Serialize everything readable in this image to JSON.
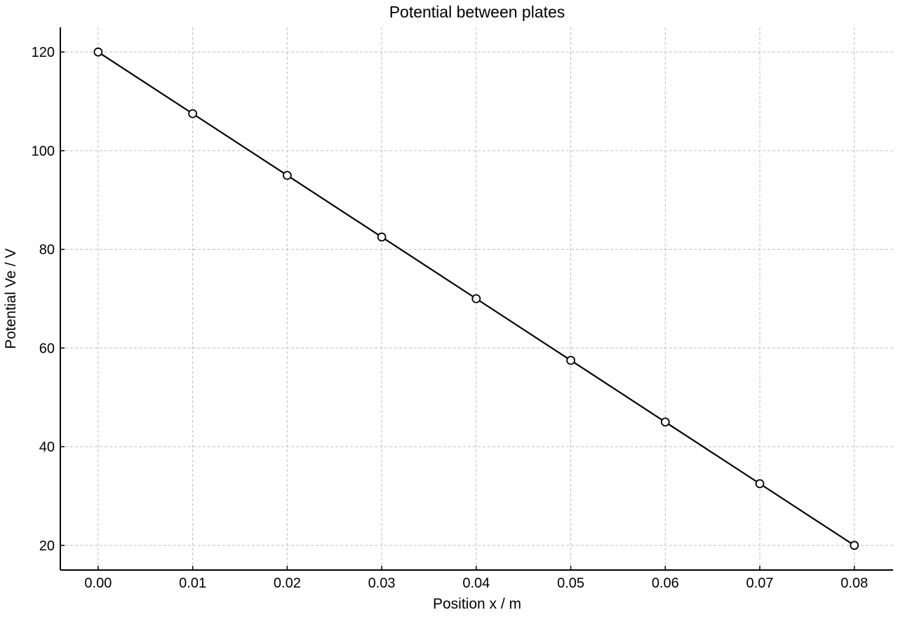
{
  "chart_data": {
    "type": "line",
    "title": "Potential between plates",
    "xlabel": "Position x / m",
    "ylabel": "Potential Ve / V",
    "xlim": [
      -0.004,
      0.0841
    ],
    "ylim": [
      15,
      125
    ],
    "xticks": [
      0.0,
      0.01,
      0.02,
      0.03,
      0.04,
      0.05,
      0.06,
      0.07,
      0.08
    ],
    "xtick_labels": [
      "0.00",
      "0.01",
      "0.02",
      "0.03",
      "0.04",
      "0.05",
      "0.06",
      "0.07",
      "0.08"
    ],
    "yticks": [
      20,
      40,
      60,
      80,
      100,
      120
    ],
    "ytick_labels": [
      "20",
      "40",
      "60",
      "80",
      "100",
      "120"
    ],
    "grid": true,
    "series": [
      {
        "color": "#000000",
        "marker": "open-circle",
        "x": [
          0.0,
          0.01,
          0.02,
          0.03,
          0.04,
          0.05,
          0.06,
          0.07,
          0.08
        ],
        "y": [
          120,
          107.5,
          95,
          82.5,
          70,
          57.5,
          45,
          32.5,
          20
        ]
      }
    ]
  }
}
